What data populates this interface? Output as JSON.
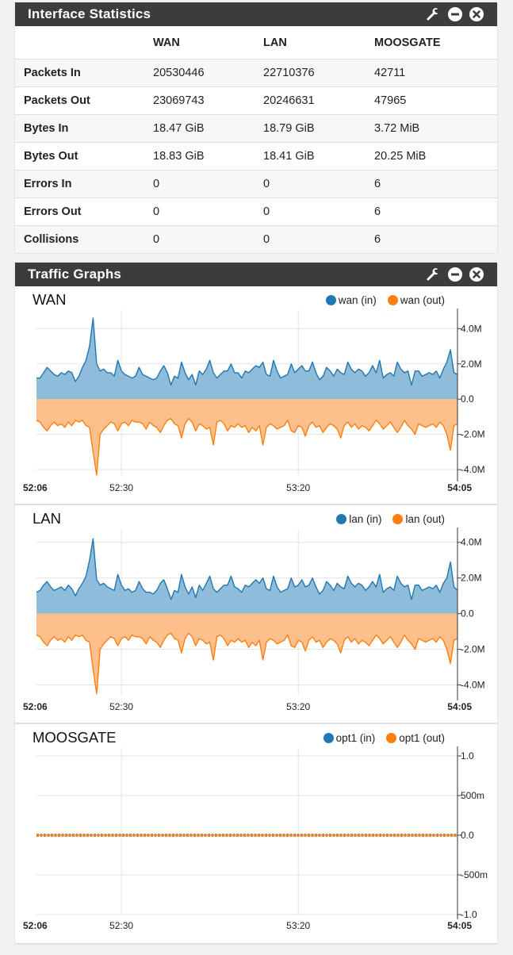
{
  "stats": {
    "title": "Interface Statistics",
    "columns": [
      "WAN",
      "LAN",
      "MOOSGATE"
    ],
    "rows": [
      {
        "label": "Packets In",
        "values": [
          "20530446",
          "22710376",
          "42711"
        ]
      },
      {
        "label": "Packets Out",
        "values": [
          "23069743",
          "20246631",
          "47965"
        ]
      },
      {
        "label": "Bytes In",
        "values": [
          "18.47 GiB",
          "18.79 GiB",
          "3.72 MiB"
        ]
      },
      {
        "label": "Bytes Out",
        "values": [
          "18.83 GiB",
          "18.41 GiB",
          "20.25 MiB"
        ]
      },
      {
        "label": "Errors In",
        "values": [
          "0",
          "0",
          "6"
        ]
      },
      {
        "label": "Errors Out",
        "values": [
          "0",
          "0",
          "6"
        ]
      },
      {
        "label": "Collisions",
        "values": [
          "0",
          "0",
          "6"
        ]
      }
    ]
  },
  "traffic": {
    "title": "Traffic Graphs"
  },
  "icons": [
    "wrench-icon",
    "minimize-icon",
    "close-icon"
  ],
  "colors": {
    "in": "#1f77b4",
    "out": "#ff7f0e",
    "in_fill": "#8fbcd8",
    "out_fill": "#fdbf8b",
    "header": "#3c3c3c"
  },
  "chart_data": [
    {
      "type": "area",
      "title": "WAN",
      "series": [
        {
          "name": "wan (in)"
        },
        {
          "name": "wan (out)"
        }
      ],
      "y_ticks": [
        4,
        2,
        0,
        -2,
        -4
      ],
      "y_tick_labels": [
        "4.0M",
        "2.0M",
        "0.0",
        "-2.0M",
        "-4.0M"
      ],
      "ylim": [
        -4.4,
        4.6
      ],
      "x_ticks": [
        "52:06",
        "52:30",
        "53:20",
        "54:05"
      ],
      "x_tick_times": [
        0,
        24,
        74,
        119
      ],
      "xlim": [
        0,
        119
      ],
      "in_values": [
        1.2,
        1.2,
        1.5,
        1.8,
        1.6,
        1.4,
        1.3,
        1.5,
        1.4,
        1.6,
        1.5,
        1.0,
        1.3,
        1.8,
        2.2,
        3.0,
        4.6,
        2.0,
        1.6,
        1.7,
        1.5,
        1.5,
        1.3,
        2.2,
        1.6,
        1.4,
        1.3,
        1.2,
        1.3,
        1.8,
        1.4,
        1.3,
        1.2,
        1.1,
        1.2,
        1.6,
        1.9,
        1.5,
        0.8,
        1.3,
        1.2,
        2.1,
        1.5,
        1.1,
        1.4,
        0.8,
        1.6,
        1.4,
        1.7,
        2.2,
        1.5,
        1.2,
        1.4,
        1.6,
        1.6,
        2.0,
        1.5,
        1.5,
        1.2,
        1.6,
        1.5,
        1.7,
        1.9,
        1.8,
        2.1,
        1.4,
        1.3,
        2.2,
        1.6,
        1.2,
        1.3,
        1.4,
        2.0,
        1.5,
        1.7,
        1.9,
        1.6,
        1.6,
        2.1,
        1.5,
        1.1,
        1.3,
        1.8,
        1.6,
        1.3,
        1.7,
        1.5,
        1.4,
        2.1,
        1.7,
        1.5,
        1.7,
        1.6,
        1.3,
        1.5,
        1.9,
        1.5,
        2.2,
        1.2,
        1.4,
        1.5,
        1.3,
        2.1,
        1.7,
        1.5,
        1.6,
        0.8,
        1.6,
        1.6,
        1.3,
        1.4,
        1.5,
        1.4,
        1.6,
        1.2,
        1.7,
        2.1,
        2.8,
        1.5,
        1.4
      ],
      "out_values": [
        -1.2,
        -1.3,
        -1.6,
        -1.8,
        -1.5,
        -1.3,
        -1.5,
        -1.4,
        -1.6,
        -1.3,
        -1.5,
        -1.2,
        -1.3,
        -1.2,
        -1.5,
        -1.6,
        -3.0,
        -4.3,
        -2.0,
        -1.7,
        -1.5,
        -1.3,
        -1.4,
        -1.8,
        -1.4,
        -1.3,
        -1.5,
        -1.2,
        -1.3,
        -1.3,
        -1.4,
        -1.7,
        -1.3,
        -1.5,
        -1.6,
        -1.9,
        -1.5,
        -1.2,
        -1.1,
        -1.4,
        -1.5,
        -2.2,
        -1.4,
        -1.1,
        -1.3,
        -1.8,
        -1.4,
        -1.5,
        -1.7,
        -1.6,
        -2.6,
        -1.3,
        -1.2,
        -1.4,
        -1.8,
        -1.5,
        -1.6,
        -1.4,
        -1.6,
        -1.5,
        -1.9,
        -1.6,
        -1.8,
        -1.5,
        -2.6,
        -1.6,
        -1.4,
        -1.5,
        -1.7,
        -1.6,
        -1.5,
        -1.2,
        -1.8,
        -1.9,
        -1.5,
        -1.6,
        -2.1,
        -1.5,
        -1.3,
        -1.6,
        -1.5,
        -1.9,
        -1.6,
        -1.4,
        -1.5,
        -1.7,
        -2.2,
        -1.5,
        -1.3,
        -1.6,
        -1.4,
        -1.7,
        -1.5,
        -1.6,
        -1.8,
        -1.5,
        -1.2,
        -1.4,
        -1.7,
        -1.5,
        -1.3,
        -1.6,
        -1.9,
        -1.6,
        -1.2,
        -1.5,
        -1.7,
        -2.0,
        -1.4,
        -1.5,
        -1.6,
        -1.5,
        -1.4,
        -1.6,
        -1.3,
        -1.5,
        -2.0,
        -2.9,
        -1.5,
        -1.4
      ]
    },
    {
      "type": "area",
      "title": "LAN",
      "series": [
        {
          "name": "lan (in)"
        },
        {
          "name": "lan (out)"
        }
      ],
      "y_ticks": [
        4,
        2,
        0,
        -2,
        -4
      ],
      "y_tick_labels": [
        "4.0M",
        "2.0M",
        "0.0",
        "-2.0M",
        "-4.0M"
      ],
      "ylim": [
        -4.6,
        4.3
      ],
      "x_ticks": [
        "52:06",
        "52:30",
        "53:20",
        "54:05"
      ],
      "x_tick_times": [
        0,
        24,
        74,
        119
      ],
      "xlim": [
        0,
        119
      ],
      "in_values": [
        1.2,
        1.3,
        1.6,
        1.8,
        1.5,
        1.3,
        1.4,
        1.5,
        1.3,
        1.6,
        1.4,
        1.0,
        1.4,
        1.7,
        2.1,
        3.0,
        4.2,
        1.9,
        1.6,
        1.7,
        1.5,
        1.4,
        1.3,
        2.2,
        1.6,
        1.3,
        1.4,
        1.2,
        1.3,
        1.8,
        1.4,
        1.2,
        1.2,
        1.1,
        1.3,
        1.7,
        1.9,
        1.4,
        0.8,
        1.3,
        1.2,
        2.2,
        1.5,
        1.1,
        1.5,
        0.9,
        1.6,
        1.3,
        1.7,
        2.1,
        1.4,
        1.2,
        1.4,
        1.6,
        1.6,
        2.1,
        1.5,
        1.4,
        1.2,
        1.6,
        1.5,
        1.7,
        1.9,
        1.7,
        2.0,
        1.4,
        1.3,
        2.1,
        1.5,
        1.2,
        1.3,
        1.4,
        2.0,
        1.5,
        1.6,
        1.9,
        1.5,
        1.6,
        2.0,
        1.5,
        1.1,
        1.3,
        1.8,
        1.6,
        1.3,
        1.7,
        1.5,
        1.4,
        2.1,
        1.7,
        1.5,
        1.7,
        1.6,
        1.3,
        1.5,
        1.8,
        1.5,
        2.2,
        1.2,
        1.4,
        1.5,
        1.3,
        2.1,
        1.7,
        1.5,
        1.6,
        0.8,
        1.6,
        1.6,
        1.3,
        1.4,
        1.5,
        1.4,
        1.6,
        1.2,
        1.7,
        2.0,
        2.9,
        1.5,
        1.3
      ],
      "out_values": [
        -1.2,
        -1.3,
        -1.6,
        -1.8,
        -1.5,
        -1.3,
        -1.5,
        -1.4,
        -1.6,
        -1.3,
        -1.5,
        -1.2,
        -1.3,
        -1.2,
        -1.5,
        -1.6,
        -3.1,
        -4.5,
        -2.0,
        -1.7,
        -1.5,
        -1.3,
        -1.4,
        -1.8,
        -1.4,
        -1.3,
        -1.5,
        -1.2,
        -1.3,
        -1.3,
        -1.4,
        -1.7,
        -1.3,
        -1.5,
        -1.6,
        -1.9,
        -1.5,
        -1.2,
        -1.1,
        -1.4,
        -1.5,
        -2.2,
        -1.4,
        -1.1,
        -1.3,
        -1.8,
        -1.4,
        -1.5,
        -1.7,
        -1.6,
        -2.6,
        -1.3,
        -1.2,
        -1.4,
        -1.8,
        -1.5,
        -1.6,
        -1.4,
        -1.6,
        -1.5,
        -1.9,
        -1.6,
        -1.8,
        -1.5,
        -2.6,
        -1.6,
        -1.4,
        -1.5,
        -1.7,
        -1.6,
        -1.5,
        -1.2,
        -1.8,
        -1.9,
        -1.5,
        -1.6,
        -2.1,
        -1.5,
        -1.3,
        -1.6,
        -1.5,
        -1.9,
        -1.6,
        -1.4,
        -1.5,
        -1.7,
        -2.2,
        -1.5,
        -1.3,
        -1.6,
        -1.4,
        -1.7,
        -1.5,
        -1.6,
        -1.8,
        -1.5,
        -1.2,
        -1.4,
        -1.7,
        -1.5,
        -1.3,
        -1.6,
        -1.9,
        -1.6,
        -1.2,
        -1.5,
        -1.7,
        -2.0,
        -1.4,
        -1.5,
        -1.6,
        -1.5,
        -1.4,
        -1.6,
        -1.3,
        -1.5,
        -2.0,
        -2.8,
        -1.5,
        -1.4
      ]
    },
    {
      "type": "area",
      "title": "MOOSGATE",
      "series": [
        {
          "name": "opt1 (in)"
        },
        {
          "name": "opt1 (out)"
        }
      ],
      "y_ticks": [
        1,
        0.5,
        0,
        -0.5,
        -1
      ],
      "y_tick_labels": [
        "1.0",
        "500m",
        "0.0",
        "-500m",
        "-1.0"
      ],
      "ylim": [
        -1.0,
        1.0
      ],
      "x_ticks": [
        "52:06",
        "52:30",
        "53:20",
        "54:05"
      ],
      "x_tick_times": [
        0,
        24,
        74,
        119
      ],
      "xlim": [
        0,
        119
      ],
      "in_values": "flat-zero",
      "out_values": "flat-zero"
    }
  ]
}
